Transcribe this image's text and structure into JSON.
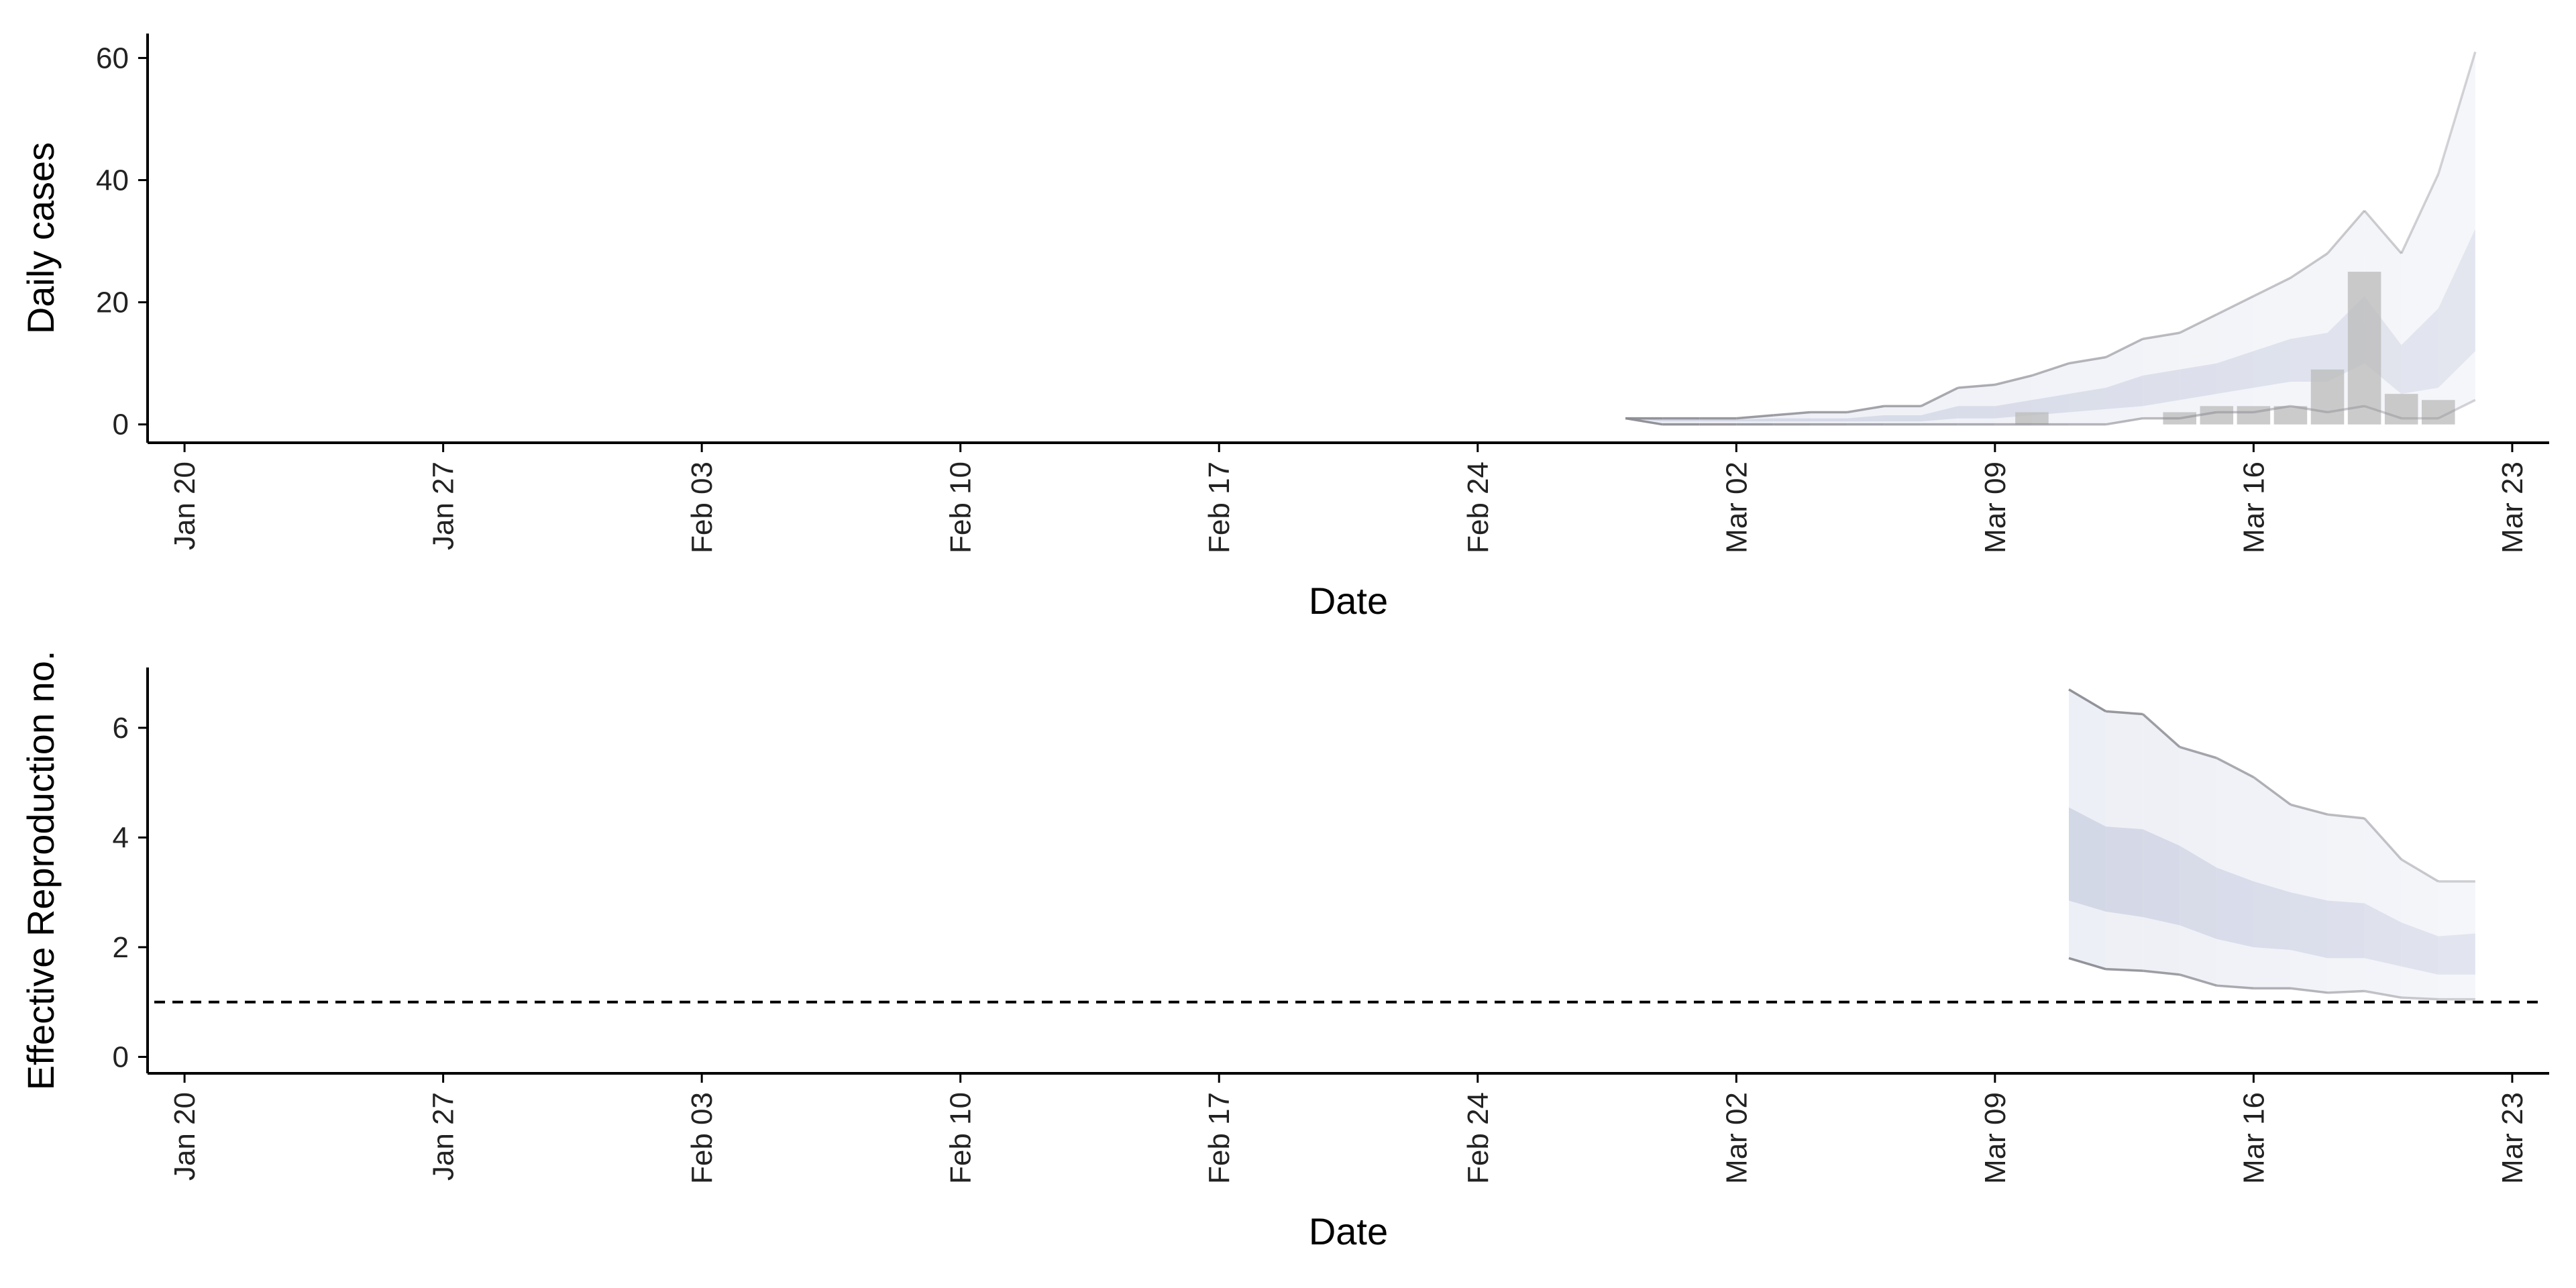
{
  "chart_data": [
    {
      "type": "bar",
      "panel": "top",
      "xlabel": "Date",
      "ylabel": "Daily cases",
      "xlim": [
        "2020-01-19",
        "2020-03-24"
      ],
      "ylim": [
        -3,
        64
      ],
      "yticks": [
        0,
        20,
        40,
        60
      ],
      "xticks": [
        "2020-01-20",
        "2020-01-27",
        "2020-02-03",
        "2020-02-10",
        "2020-02-17",
        "2020-02-24",
        "2020-03-02",
        "2020-03-09",
        "2020-03-16",
        "2020-03-23"
      ],
      "xtick_labels": [
        "Jan 20",
        "Jan 27",
        "Feb 03",
        "Feb 10",
        "Feb 17",
        "Feb 24",
        "Mar 02",
        "Mar 09",
        "Mar 16",
        "Mar 23"
      ],
      "bars": {
        "x": [
          "2020-03-10",
          "2020-03-14",
          "2020-03-15",
          "2020-03-16",
          "2020-03-17",
          "2020-03-18",
          "2020-03-19",
          "2020-03-20",
          "2020-03-21"
        ],
        "values": [
          2,
          2,
          3,
          3,
          3,
          9,
          25,
          5,
          4
        ],
        "color": "#bdbdbd"
      },
      "bands": {
        "x": [
          "2020-02-28",
          "2020-02-29",
          "2020-03-01",
          "2020-03-02",
          "2020-03-03",
          "2020-03-04",
          "2020-03-05",
          "2020-03-06",
          "2020-03-07",
          "2020-03-08",
          "2020-03-09",
          "2020-03-10",
          "2020-03-11",
          "2020-03-12",
          "2020-03-13",
          "2020-03-14",
          "2020-03-15",
          "2020-03-16",
          "2020-03-17",
          "2020-03-18",
          "2020-03-19",
          "2020-03-20",
          "2020-03-21",
          "2020-03-22"
        ],
        "outer_lower": [
          1,
          0,
          0,
          0,
          0,
          0,
          0,
          0,
          0,
          0,
          0,
          0,
          0,
          0,
          1,
          1,
          2,
          2,
          3,
          2,
          3,
          1,
          1,
          4
        ],
        "outer_upper": [
          1,
          1,
          1,
          1,
          1.5,
          2,
          2,
          3,
          3,
          6,
          6.5,
          8,
          10,
          11,
          14,
          15,
          18,
          21,
          24,
          28,
          35,
          28,
          41,
          61
        ],
        "inner_lower": [
          1,
          0.5,
          0.5,
          0.5,
          0.5,
          0.5,
          0.5,
          0.5,
          0.5,
          1,
          1,
          1.5,
          2,
          2.5,
          3,
          4,
          5,
          6,
          7,
          7,
          10,
          5,
          6,
          12
        ],
        "inner_upper": [
          1,
          0.8,
          0.8,
          0.8,
          1,
          1,
          1,
          1.5,
          1.5,
          3,
          3,
          4,
          5,
          6,
          8,
          9,
          10,
          12,
          14,
          15,
          21,
          13,
          19,
          32
        ],
        "outer_color": "#eceef5",
        "inner_color": "#d2d6e5",
        "line_color": "#8c8c94"
      }
    },
    {
      "type": "line",
      "panel": "bottom",
      "xlabel": "Date",
      "ylabel": "Effective Reproduction no.",
      "xlim": [
        "2020-01-19",
        "2020-03-24"
      ],
      "ylim": [
        -0.3,
        7.1
      ],
      "yticks": [
        0,
        2,
        4,
        6
      ],
      "xticks": [
        "2020-01-20",
        "2020-01-27",
        "2020-02-03",
        "2020-02-10",
        "2020-02-17",
        "2020-02-24",
        "2020-03-02",
        "2020-03-09",
        "2020-03-16",
        "2020-03-23"
      ],
      "xtick_labels": [
        "Jan 20",
        "Jan 27",
        "Feb 03",
        "Feb 10",
        "Feb 17",
        "Feb 24",
        "Mar 02",
        "Mar 09",
        "Mar 16",
        "Mar 23"
      ],
      "reference_line": {
        "y": 1,
        "style": "dashed",
        "color": "#000000"
      },
      "bands": {
        "x": [
          "2020-03-11",
          "2020-03-12",
          "2020-03-13",
          "2020-03-14",
          "2020-03-15",
          "2020-03-16",
          "2020-03-17",
          "2020-03-18",
          "2020-03-19",
          "2020-03-20",
          "2020-03-21",
          "2020-03-22"
        ],
        "outer_lower": [
          1.8,
          1.6,
          1.57,
          1.5,
          1.3,
          1.25,
          1.25,
          1.17,
          1.2,
          1.08,
          1.05,
          1.05
        ],
        "outer_upper": [
          6.7,
          6.3,
          6.25,
          5.65,
          5.45,
          5.1,
          4.6,
          4.42,
          4.35,
          3.6,
          3.2,
          3.2
        ],
        "inner_lower": [
          2.85,
          2.65,
          2.55,
          2.4,
          2.15,
          2.0,
          1.95,
          1.8,
          1.8,
          1.65,
          1.5,
          1.5
        ],
        "inner_upper": [
          4.55,
          4.2,
          4.15,
          3.85,
          3.45,
          3.2,
          3.0,
          2.85,
          2.8,
          2.45,
          2.2,
          2.25
        ],
        "outer_color": "#eceef5",
        "inner_color": "#d2d6e5",
        "line_color": "#8c8c94"
      }
    }
  ]
}
